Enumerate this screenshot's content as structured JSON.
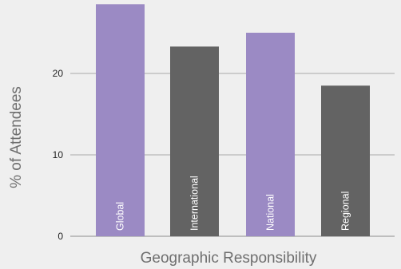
{
  "chart_data": {
    "type": "bar",
    "categories": [
      "Global",
      "International",
      "National",
      "Regional"
    ],
    "values": [
      28.5,
      23.3,
      25.0,
      18.5
    ],
    "colors": [
      "#9b8ac4",
      "#636363",
      "#9b8ac4",
      "#636363"
    ],
    "xlabel": "Geographic Responsibility",
    "ylabel": "% of Attendees",
    "yticks": [
      0,
      10,
      20
    ],
    "ylim": [
      0,
      30
    ],
    "grid": true,
    "gridColor": "#a9a9a9",
    "background": "#efefef"
  }
}
